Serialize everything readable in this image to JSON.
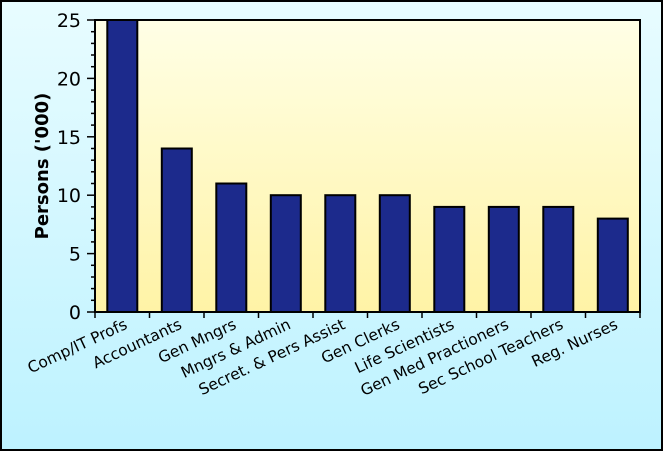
{
  "chart_data": {
    "type": "bar",
    "title": "",
    "xlabel": "",
    "ylabel": "Persons ('000)",
    "ylim": [
      0,
      25
    ],
    "yticks": [
      0,
      5,
      10,
      15,
      20,
      25
    ],
    "grid": false,
    "categories": [
      "Comp/IT Profs",
      "Accountants",
      "Gen Mngrs",
      "Mngrs & Admin",
      "Secret. & Pers Assist",
      "Gen Clerks",
      "Life Scientists",
      "Gen Med Practioners",
      "Sec School Teachers",
      "Reg. Nurses"
    ],
    "values": [
      25,
      14,
      11,
      10,
      10,
      10,
      9,
      9,
      9,
      8
    ],
    "colors": {
      "bar_fill": "#1C2A8C",
      "bar_stroke": "#000000",
      "plot_bg_top": "#FFFFE6",
      "plot_bg_bottom": "#FFF3A6",
      "page_bg_top": "#E8FCFF",
      "page_bg_bottom": "#BDF2FF",
      "frame": "#000000"
    }
  }
}
